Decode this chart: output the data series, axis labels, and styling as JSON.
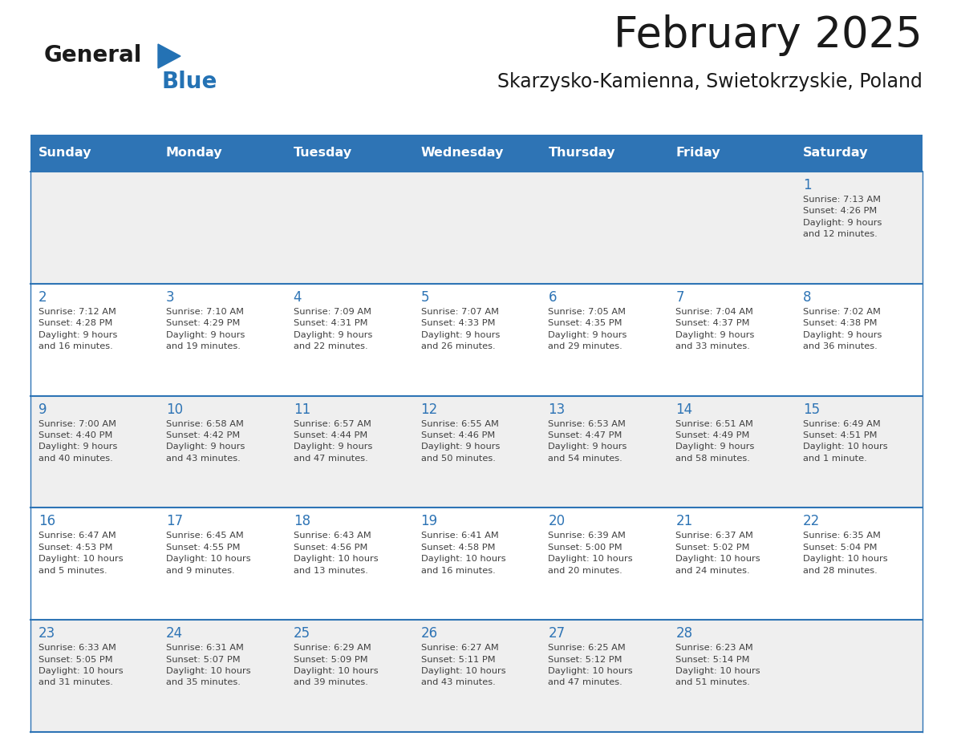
{
  "title": "February 2025",
  "subtitle": "Skarzysko-Kamienna, Swietokrzyskie, Poland",
  "days_of_week": [
    "Sunday",
    "Monday",
    "Tuesday",
    "Wednesday",
    "Thursday",
    "Friday",
    "Saturday"
  ],
  "header_bg": "#2E74B5",
  "header_text": "#FFFFFF",
  "row_bg_white": "#FFFFFF",
  "row_bg_gray": "#EFEFEF",
  "cell_border_color": "#2E74B5",
  "day_num_color": "#2E74B5",
  "info_text_color": "#404040",
  "title_color": "#1A1A1A",
  "logo_black_color": "#1A1A1A",
  "logo_blue_color": "#2472B4",
  "calendar_data": [
    [
      {
        "day": null,
        "info": null
      },
      {
        "day": null,
        "info": null
      },
      {
        "day": null,
        "info": null
      },
      {
        "day": null,
        "info": null
      },
      {
        "day": null,
        "info": null
      },
      {
        "day": null,
        "info": null
      },
      {
        "day": 1,
        "info": "Sunrise: 7:13 AM\nSunset: 4:26 PM\nDaylight: 9 hours\nand 12 minutes."
      }
    ],
    [
      {
        "day": 2,
        "info": "Sunrise: 7:12 AM\nSunset: 4:28 PM\nDaylight: 9 hours\nand 16 minutes."
      },
      {
        "day": 3,
        "info": "Sunrise: 7:10 AM\nSunset: 4:29 PM\nDaylight: 9 hours\nand 19 minutes."
      },
      {
        "day": 4,
        "info": "Sunrise: 7:09 AM\nSunset: 4:31 PM\nDaylight: 9 hours\nand 22 minutes."
      },
      {
        "day": 5,
        "info": "Sunrise: 7:07 AM\nSunset: 4:33 PM\nDaylight: 9 hours\nand 26 minutes."
      },
      {
        "day": 6,
        "info": "Sunrise: 7:05 AM\nSunset: 4:35 PM\nDaylight: 9 hours\nand 29 minutes."
      },
      {
        "day": 7,
        "info": "Sunrise: 7:04 AM\nSunset: 4:37 PM\nDaylight: 9 hours\nand 33 minutes."
      },
      {
        "day": 8,
        "info": "Sunrise: 7:02 AM\nSunset: 4:38 PM\nDaylight: 9 hours\nand 36 minutes."
      }
    ],
    [
      {
        "day": 9,
        "info": "Sunrise: 7:00 AM\nSunset: 4:40 PM\nDaylight: 9 hours\nand 40 minutes."
      },
      {
        "day": 10,
        "info": "Sunrise: 6:58 AM\nSunset: 4:42 PM\nDaylight: 9 hours\nand 43 minutes."
      },
      {
        "day": 11,
        "info": "Sunrise: 6:57 AM\nSunset: 4:44 PM\nDaylight: 9 hours\nand 47 minutes."
      },
      {
        "day": 12,
        "info": "Sunrise: 6:55 AM\nSunset: 4:46 PM\nDaylight: 9 hours\nand 50 minutes."
      },
      {
        "day": 13,
        "info": "Sunrise: 6:53 AM\nSunset: 4:47 PM\nDaylight: 9 hours\nand 54 minutes."
      },
      {
        "day": 14,
        "info": "Sunrise: 6:51 AM\nSunset: 4:49 PM\nDaylight: 9 hours\nand 58 minutes."
      },
      {
        "day": 15,
        "info": "Sunrise: 6:49 AM\nSunset: 4:51 PM\nDaylight: 10 hours\nand 1 minute."
      }
    ],
    [
      {
        "day": 16,
        "info": "Sunrise: 6:47 AM\nSunset: 4:53 PM\nDaylight: 10 hours\nand 5 minutes."
      },
      {
        "day": 17,
        "info": "Sunrise: 6:45 AM\nSunset: 4:55 PM\nDaylight: 10 hours\nand 9 minutes."
      },
      {
        "day": 18,
        "info": "Sunrise: 6:43 AM\nSunset: 4:56 PM\nDaylight: 10 hours\nand 13 minutes."
      },
      {
        "day": 19,
        "info": "Sunrise: 6:41 AM\nSunset: 4:58 PM\nDaylight: 10 hours\nand 16 minutes."
      },
      {
        "day": 20,
        "info": "Sunrise: 6:39 AM\nSunset: 5:00 PM\nDaylight: 10 hours\nand 20 minutes."
      },
      {
        "day": 21,
        "info": "Sunrise: 6:37 AM\nSunset: 5:02 PM\nDaylight: 10 hours\nand 24 minutes."
      },
      {
        "day": 22,
        "info": "Sunrise: 6:35 AM\nSunset: 5:04 PM\nDaylight: 10 hours\nand 28 minutes."
      }
    ],
    [
      {
        "day": 23,
        "info": "Sunrise: 6:33 AM\nSunset: 5:05 PM\nDaylight: 10 hours\nand 31 minutes."
      },
      {
        "day": 24,
        "info": "Sunrise: 6:31 AM\nSunset: 5:07 PM\nDaylight: 10 hours\nand 35 minutes."
      },
      {
        "day": 25,
        "info": "Sunrise: 6:29 AM\nSunset: 5:09 PM\nDaylight: 10 hours\nand 39 minutes."
      },
      {
        "day": 26,
        "info": "Sunrise: 6:27 AM\nSunset: 5:11 PM\nDaylight: 10 hours\nand 43 minutes."
      },
      {
        "day": 27,
        "info": "Sunrise: 6:25 AM\nSunset: 5:12 PM\nDaylight: 10 hours\nand 47 minutes."
      },
      {
        "day": 28,
        "info": "Sunrise: 6:23 AM\nSunset: 5:14 PM\nDaylight: 10 hours\nand 51 minutes."
      },
      {
        "day": null,
        "info": null
      }
    ]
  ]
}
